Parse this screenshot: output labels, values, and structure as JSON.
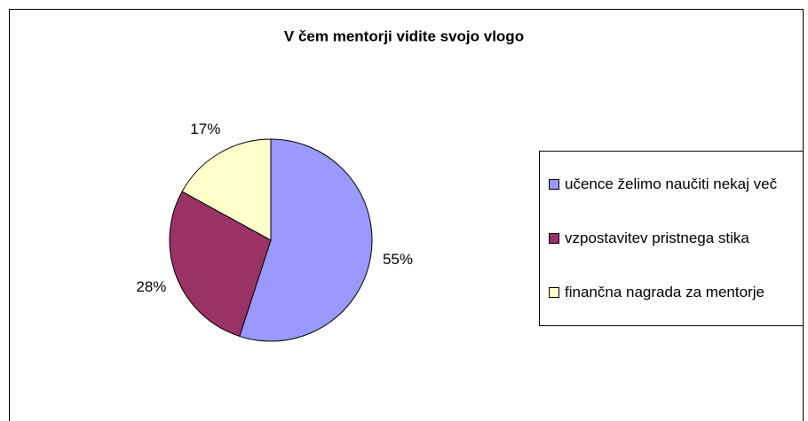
{
  "chart_data": {
    "type": "pie",
    "title": "V čem mentorji vidite svojo vlogo",
    "categories": [
      "učence želimo naučiti nekaj več",
      "vzpostavitev pristnega stika",
      "finančna nagrada za mentorje"
    ],
    "values": [
      55,
      28,
      17
    ],
    "value_labels": [
      "55%",
      "28%",
      "17%"
    ],
    "colors": [
      "#9999ff",
      "#993366",
      "#ffffcc"
    ],
    "legend": "right"
  }
}
